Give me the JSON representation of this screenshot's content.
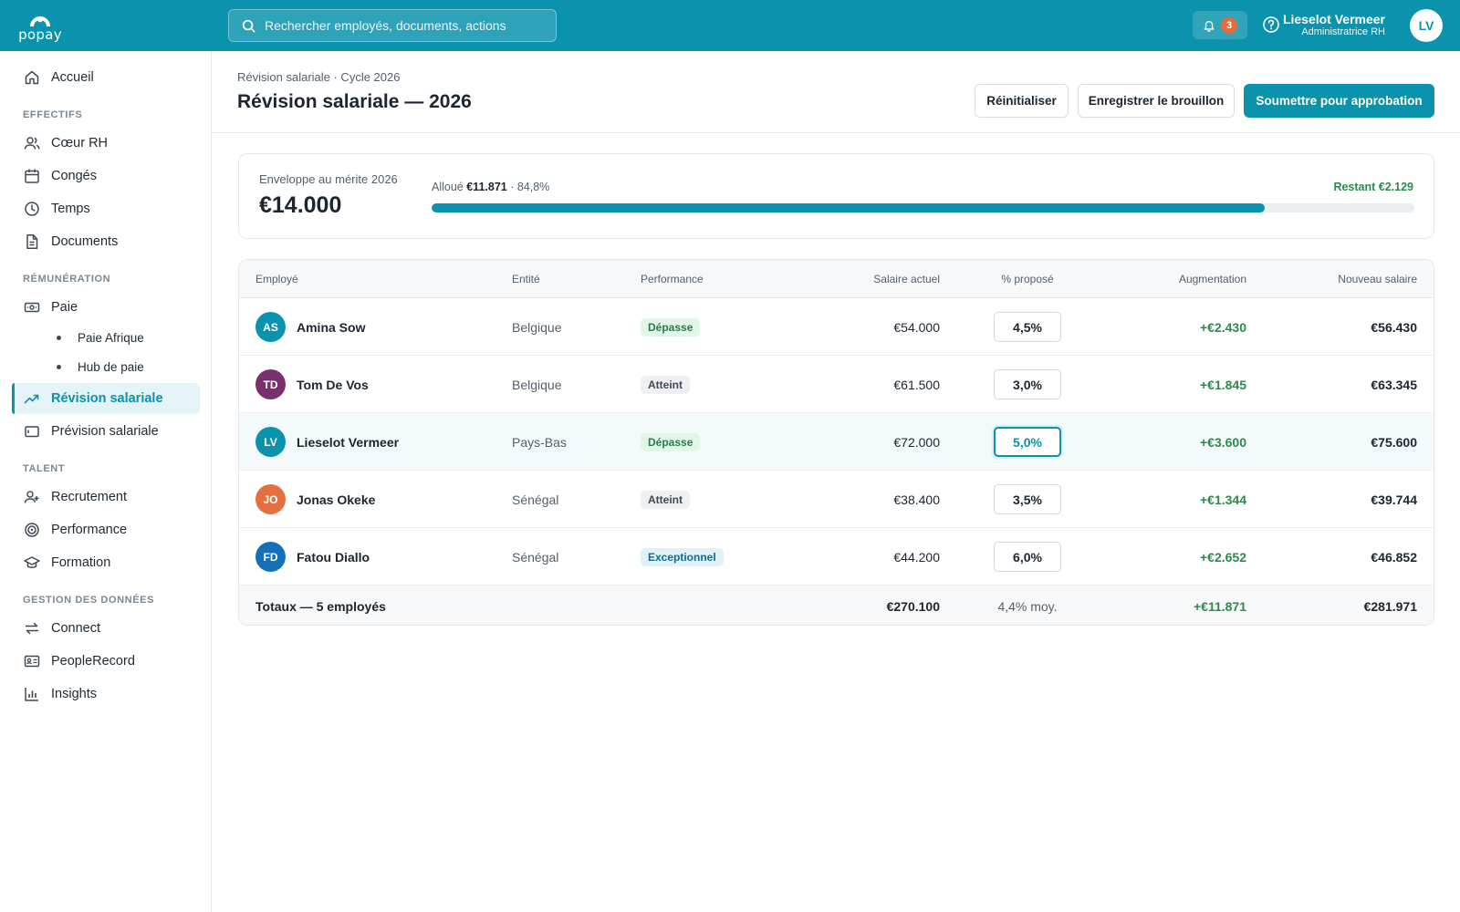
{
  "brand": {
    "logo_text": "popay",
    "accent": "#0b93ad"
  },
  "search": {
    "placeholder": "Rechercher employés, documents, actions"
  },
  "header": {
    "notifications_count": "3",
    "user_name": "Lieselot Vermeer",
    "user_role": "Administratrice RH",
    "user_initials": "LV"
  },
  "sidebar": {
    "home": "Accueil",
    "sections": {
      "effectifs": "EFFECTIFS",
      "remuneration": "RÉMUNÉRATION",
      "talent": "TALENT",
      "donnees": "GESTION DES DONNÉES"
    },
    "items": {
      "coeur_rh": "Cœur RH",
      "conges": "Congés",
      "temps": "Temps",
      "documents": "Documents",
      "paie": "Paie",
      "paie_afrique": "Paie Afrique",
      "hub_paie": "Hub de paie",
      "revision": "Révision salariale",
      "prevision": "Prévision salariale",
      "recrutement": "Recrutement",
      "performance": "Performance",
      "formation": "Formation",
      "connect": "Connect",
      "peoplerecord": "PeopleRecord",
      "insights": "Insights"
    }
  },
  "page": {
    "breadcrumb": "Révision salariale · Cycle 2026",
    "title": "Révision salariale — 2026",
    "buttons": {
      "reset": "Réinitialiser",
      "save_draft": "Enregistrer le brouillon",
      "submit": "Soumettre pour approbation"
    }
  },
  "envelope": {
    "label": "Enveloppe au mérite 2026",
    "amount": "€14.000",
    "allocated_label": "Alloué",
    "allocated_amount": "€11.871",
    "allocated_pct": "· 84,8%",
    "remaining": "Restant €2.129",
    "progress_fraction": 0.848
  },
  "table": {
    "columns": {
      "employee": "Employé",
      "entity": "Entité",
      "performance": "Performance",
      "current_salary": "Salaire actuel",
      "proposed_pct": "% proposé",
      "increase": "Augmentation",
      "new_salary": "Nouveau salaire"
    },
    "rows": [
      {
        "initials": "AS",
        "avatar_color": "#0b93ad",
        "name": "Amina Sow",
        "entity": "Belgique",
        "performance": "Dépasse",
        "perf_kind": "depasse",
        "current": "€54.000",
        "pct": "4,5%",
        "increase": "+€2.430",
        "new": "€56.430"
      },
      {
        "initials": "TD",
        "avatar_color": "#7a2f6e",
        "name": "Tom De Vos",
        "entity": "Belgique",
        "performance": "Atteint",
        "perf_kind": "atteint",
        "current": "€61.500",
        "pct": "3,0%",
        "increase": "+€1.845",
        "new": "€63.345"
      },
      {
        "initials": "LV",
        "avatar_color": "#0b93ad",
        "name": "Lieselot Vermeer",
        "entity": "Pays-Bas",
        "performance": "Dépasse",
        "perf_kind": "depasse",
        "current": "€72.000",
        "pct": "5,0%",
        "increase": "+€3.600",
        "new": "€75.600"
      },
      {
        "initials": "JO",
        "avatar_color": "#e4703f",
        "name": "Jonas Okeke",
        "entity": "Sénégal",
        "performance": "Atteint",
        "perf_kind": "atteint",
        "current": "€38.400",
        "pct": "3,5%",
        "increase": "+€1.344",
        "new": "€39.744"
      },
      {
        "initials": "FD",
        "avatar_color": "#1470b8",
        "name": "Fatou Diallo",
        "entity": "Sénégal",
        "performance": "Exceptionnel",
        "perf_kind": "exceptionnel",
        "current": "€44.200",
        "pct": "6,0%",
        "increase": "+€2.652",
        "new": "€46.852"
      }
    ],
    "totals": {
      "label": "Totaux — 5 employés",
      "current": "€270.100",
      "pct": "4,4% moy.",
      "increase": "+€11.871",
      "new": "€281.971"
    }
  }
}
